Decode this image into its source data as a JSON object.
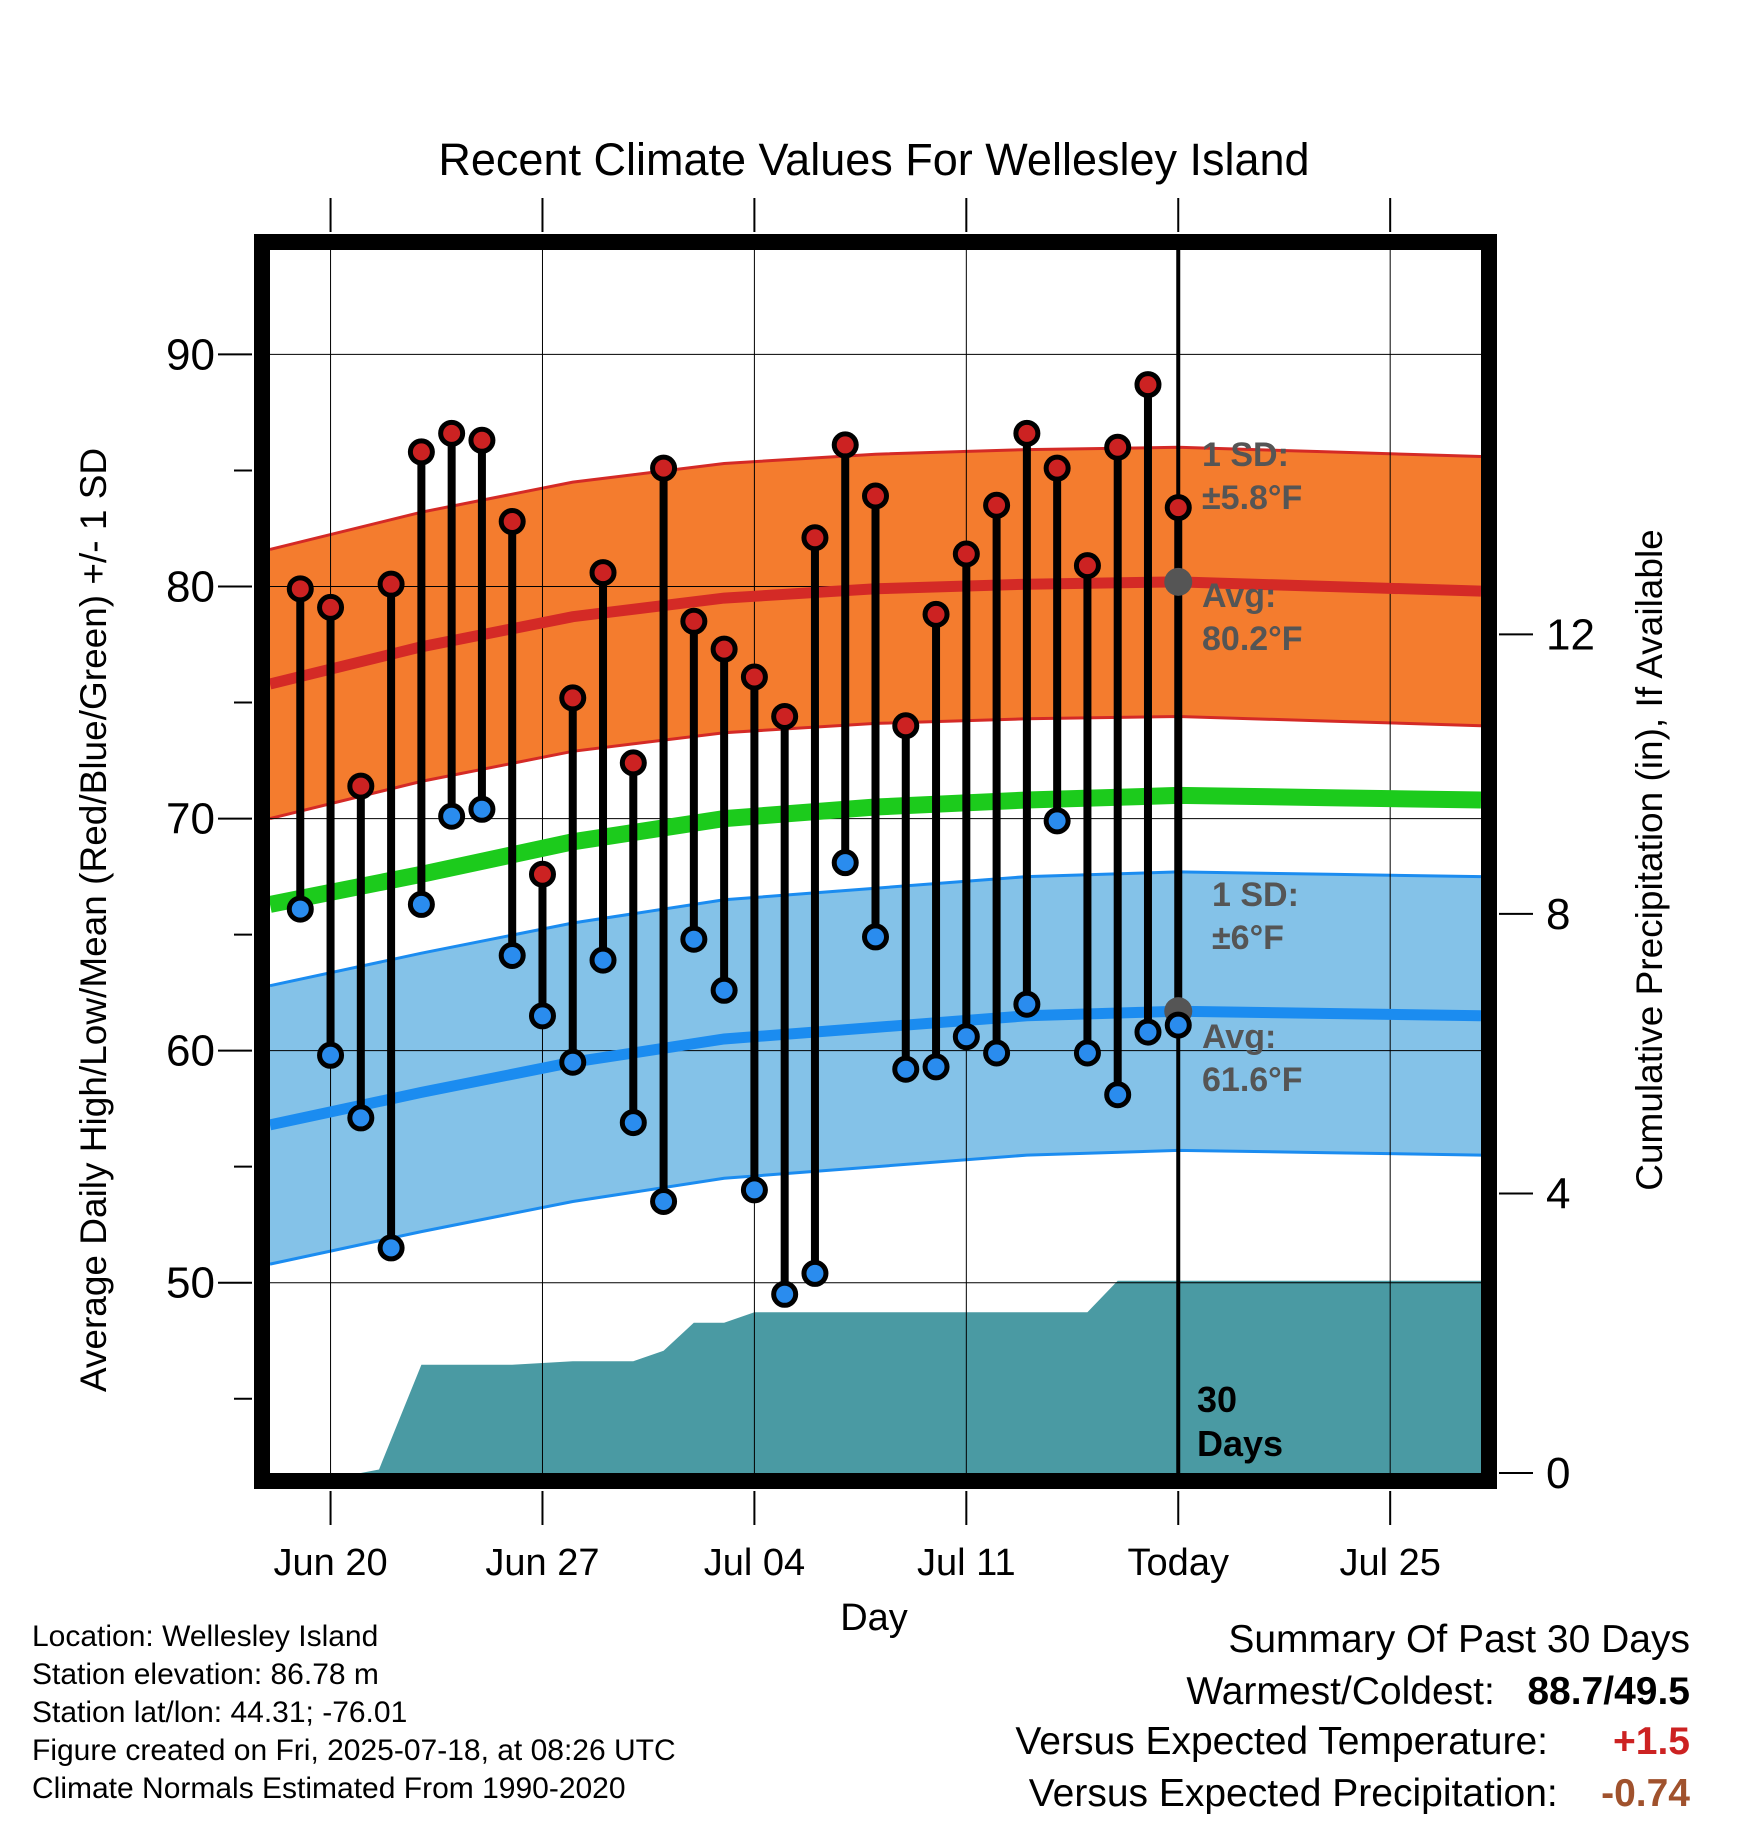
{
  "chart_data": {
    "type": "line",
    "title": "Recent Climate Values For Wellesley Island",
    "xlabel": "Day",
    "ylabel": "Average Daily High/Low/Mean (Red/Blue/Green) +/- 1 SD",
    "y2label": "Cumulative Precipitation (in), If Available",
    "x_start_date": "2025-06-18",
    "x_range_days": [
      0,
      40
    ],
    "ylim": [
      41.8,
      94.5
    ],
    "y_ticks": [
      90,
      80,
      70,
      60,
      50
    ],
    "y2lim": [
      0,
      17.5
    ],
    "y2_ticks": [
      12,
      8,
      4,
      0
    ],
    "x_ticks": [
      {
        "day": 2,
        "label": "Jun 20"
      },
      {
        "day": 9,
        "label": "Jun 27"
      },
      {
        "day": 16,
        "label": "Jul 04"
      },
      {
        "day": 23,
        "label": "Jul 11"
      },
      {
        "day": 30,
        "label": "Today"
      },
      {
        "day": 37,
        "label": "Jul 25"
      }
    ],
    "days": [
      1,
      2,
      3,
      4,
      5,
      6,
      7,
      8,
      9,
      10,
      11,
      12,
      13,
      14,
      15,
      16,
      17,
      18,
      19,
      20,
      21,
      22,
      23,
      24,
      25,
      26,
      27,
      28,
      29
    ],
    "daily_high": [
      79.9,
      79.1,
      71.4,
      80.1,
      85.8,
      86.6,
      86.3,
      82.8,
      67.6,
      75.2,
      80.6,
      72.4,
      85.1,
      78.5,
      77.3,
      76.1,
      74.4,
      82.1,
      86.1,
      83.9,
      74.0,
      78.8,
      81.4,
      83.5,
      86.6,
      85.1,
      80.9,
      86.0,
      88.7
    ],
    "daily_low": [
      66.1,
      59.8,
      57.1,
      51.5,
      66.3,
      70.1,
      70.4,
      64.1,
      61.5,
      59.5,
      63.9,
      56.9,
      53.5,
      64.8,
      62.6,
      54.0,
      49.5,
      50.4,
      68.1,
      64.9,
      59.2,
      59.3,
      60.6,
      59.9,
      62.0,
      69.9,
      59.9,
      58.1,
      60.8
    ],
    "extra_high": {
      "day": 30,
      "value": 83.4
    },
    "extra_low": {
      "day": 30,
      "value": 61.1
    },
    "normal_days": [
      0,
      5,
      10,
      15,
      20,
      25,
      30,
      35,
      40
    ],
    "normal_high": [
      75.8,
      77.4,
      78.7,
      79.5,
      79.9,
      80.1,
      80.2,
      80.0,
      79.8
    ],
    "normal_high_sd": 5.8,
    "normal_low": [
      56.8,
      58.2,
      59.5,
      60.5,
      61.0,
      61.5,
      61.7,
      61.6,
      61.5
    ],
    "normal_low_sd": 6.0,
    "normal_mean": [
      66.3,
      67.6,
      69.0,
      70.0,
      70.5,
      70.8,
      71.0,
      70.9,
      70.8
    ],
    "precip_days": [
      0,
      3,
      3.6,
      5,
      8,
      10,
      12,
      13,
      14,
      15,
      16,
      27,
      28,
      40
    ],
    "precip_cumulative": [
      0,
      0,
      0.05,
      1.55,
      1.55,
      1.6,
      1.6,
      1.75,
      2.15,
      2.15,
      2.3,
      2.3,
      2.75,
      2.75
    ],
    "annotations": {
      "high_sd_label_1": "1 SD:",
      "high_sd_label_2": "±5.8°F",
      "high_avg_label_1": "Avg:",
      "high_avg_label_2": "80.2°F",
      "low_sd_label_1": "1 SD:",
      "low_sd_label_2": "±6°F",
      "low_avg_label_1": "Avg:",
      "low_avg_label_2": "61.6°F",
      "days_label_1": "30",
      "days_label_2": "Days"
    },
    "colors": {
      "high_band": "#f47c2e",
      "high_line": "#d42a26",
      "low_band": "#84c2e8",
      "low_line": "#1b8cf0",
      "mean_line": "#1ccb1c",
      "precip": "#4a9aa3",
      "high_dot": "#cc2222",
      "low_dot": "#2a8cee",
      "label_gray": "#555555"
    }
  },
  "info": {
    "location": "Location: Wellesley Island",
    "elevation": "Station elevation: 86.78 m",
    "latlon": "Station lat/lon: 44.31; -76.01",
    "created": "Figure created on Fri, 2025-07-18, at 08:26 UTC",
    "normals": "Climate Normals Estimated From 1990-2020"
  },
  "summary": {
    "heading": "Summary Of Past 30 Days",
    "warm_cold_label": "Warmest/Coldest:",
    "warm_cold_value": "88.7/49.5",
    "temp_label": "Versus Expected Temperature:",
    "temp_value": "+1.5",
    "temp_color": "#cc2222",
    "precip_label": "Versus Expected Precipitation:",
    "precip_value": "-0.74",
    "precip_color": "#a0522d"
  }
}
